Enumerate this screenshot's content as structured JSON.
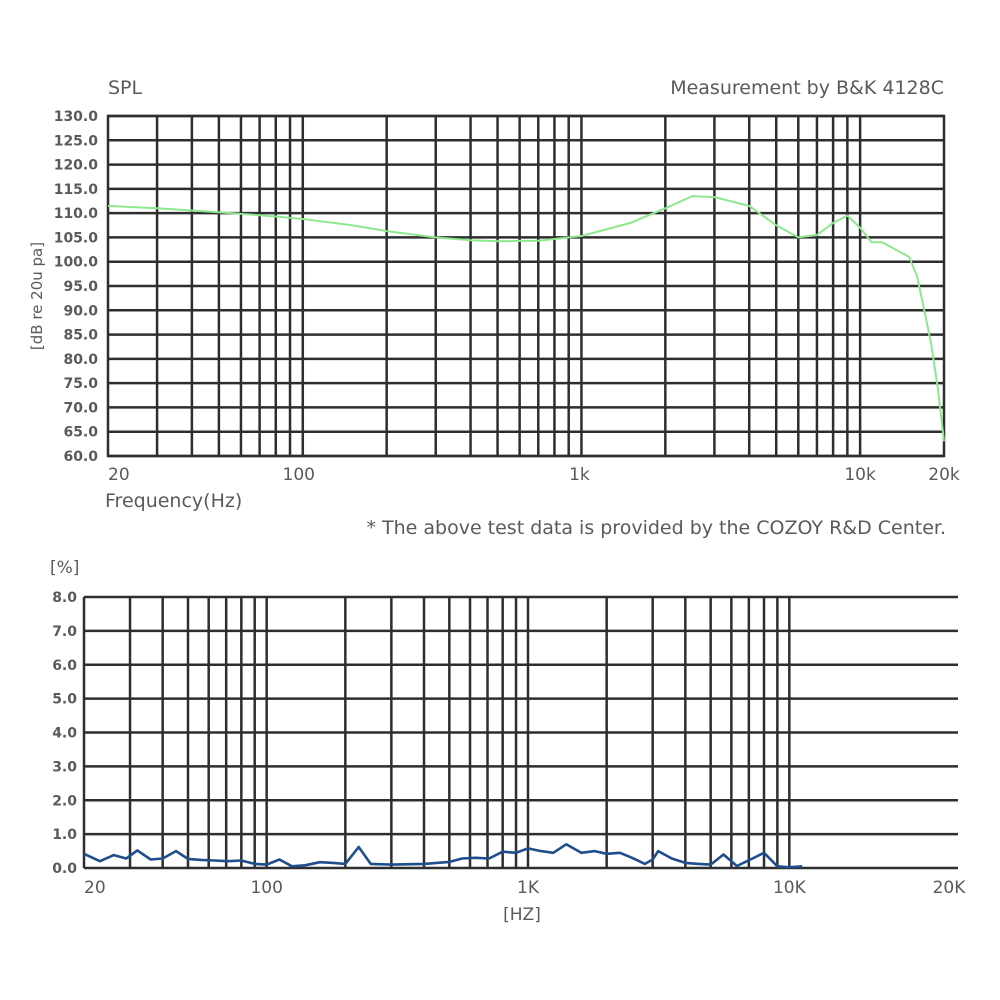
{
  "chart_data": [
    {
      "type": "line",
      "title": "SPL",
      "subtitle": "Measurement by B&K 4128C",
      "xlabel": "Frequency(Hz)",
      "ylabel": "[dB re 20u pa]",
      "x_scale": "log",
      "xlim": [
        20,
        20000
      ],
      "ylim": [
        60,
        130
      ],
      "y_ticks": [
        "130.0",
        "125.0",
        "120.0",
        "115.0",
        "110.0",
        "105.0",
        "100.0",
        "95.0",
        "90.0",
        "85.0",
        "80.0",
        "75.0",
        "70.0",
        "65.0",
        "60.0"
      ],
      "x_tick_labels": [
        {
          "value": 20,
          "label": "20"
        },
        {
          "value": 100,
          "label": "100"
        },
        {
          "value": 1000,
          "label": "1k"
        },
        {
          "value": 10000,
          "label": "10k"
        },
        {
          "value": 20000,
          "label": "20k"
        }
      ],
      "grid": true,
      "color": "#8ee88e",
      "series": [
        {
          "x": [
            20,
            30,
            50,
            80,
            100,
            150,
            200,
            300,
            400,
            500,
            700,
            1000,
            1500,
            2000,
            2500,
            3000,
            4000,
            5000,
            6000,
            7000,
            8000,
            9000,
            10000,
            11000,
            12000,
            15000,
            16000,
            17000,
            18000,
            19000,
            20000
          ],
          "y": [
            111.5,
            111.0,
            110.2,
            109.3,
            108.8,
            107.5,
            106.3,
            105.0,
            104.4,
            104.2,
            104.3,
            105.3,
            108.0,
            111.0,
            113.5,
            113.3,
            111.5,
            107.5,
            105.0,
            105.5,
            108.0,
            109.5,
            107.0,
            104.0,
            104.0,
            101.0,
            97.0,
            90.0,
            83.0,
            74.0,
            63.0
          ]
        }
      ]
    },
    {
      "type": "line",
      "title": "",
      "xlabel": "[HZ]",
      "ylabel": "[%]",
      "x_scale": "log",
      "xlim": [
        20,
        20000
      ],
      "ylim": [
        0,
        8
      ],
      "y_ticks": [
        "8.0",
        "7.0",
        "6.0",
        "5.0",
        "4.0",
        "3.0",
        "2.0",
        "1.0",
        "0.0"
      ],
      "x_tick_labels": [
        {
          "value": 20,
          "label": "20"
        },
        {
          "value": 100,
          "label": "100"
        },
        {
          "value": 1000,
          "label": "1K"
        },
        {
          "value": 10000,
          "label": "10K"
        },
        {
          "value": 20000,
          "label": "20K"
        }
      ],
      "grid": true,
      "color": "#1f4e8c",
      "series": [
        {
          "x": [
            20,
            23,
            26,
            29,
            32,
            36,
            40,
            45,
            50,
            56,
            63,
            71,
            80,
            90,
            100,
            112,
            125,
            140,
            160,
            180,
            200,
            225,
            250,
            300,
            400,
            500,
            560,
            630,
            710,
            800,
            900,
            1000,
            1120,
            1250,
            1400,
            1600,
            1800,
            2000,
            2250,
            2500,
            2800,
            3000,
            3150,
            3550,
            4000,
            4500,
            5000,
            5600,
            6300,
            7100,
            8000,
            9000,
            10000,
            11200
          ],
          "y": [
            0.42,
            0.2,
            0.38,
            0.28,
            0.52,
            0.25,
            0.28,
            0.5,
            0.27,
            0.24,
            0.22,
            0.2,
            0.22,
            0.12,
            0.1,
            0.25,
            0.05,
            0.08,
            0.17,
            0.15,
            0.12,
            0.62,
            0.12,
            0.1,
            0.12,
            0.18,
            0.28,
            0.3,
            0.28,
            0.48,
            0.45,
            0.58,
            0.5,
            0.45,
            0.7,
            0.45,
            0.5,
            0.42,
            0.45,
            0.3,
            0.12,
            0.25,
            0.5,
            0.28,
            0.15,
            0.12,
            0.1,
            0.4,
            0.06,
            0.25,
            0.45,
            0.05,
            0.02,
            0.05
          ]
        }
      ]
    }
  ],
  "footnote": "* The above test data is provided by the COZOY R&D Center."
}
